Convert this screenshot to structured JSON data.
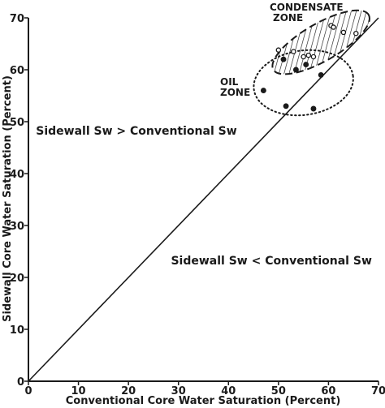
{
  "chart_data": {
    "type": "scatter",
    "xlabel": "Conventional Core Water Saturation (Percent)",
    "ylabel": "Sidewall Core Water Saturation (Percent)",
    "xlim": [
      0,
      70
    ],
    "ylim": [
      0,
      70
    ],
    "xticks": [
      0,
      10,
      20,
      30,
      40,
      50,
      60,
      70
    ],
    "yticks": [
      0,
      10,
      20,
      30,
      40,
      50,
      60,
      70
    ],
    "xtick_labels": [
      "0",
      "10",
      "20",
      "30",
      "40",
      "50",
      "60",
      "70"
    ],
    "ytick_labels": [
      "0",
      "10",
      "20",
      "30",
      "40",
      "50",
      "60",
      "70"
    ],
    "grid": false,
    "reference_line": {
      "type": "1:1",
      "from": [
        0,
        0
      ],
      "to": [
        70,
        70
      ]
    },
    "annotations": [
      {
        "text": "Sidewall Sw > Conventional Sw",
        "x": 1.5,
        "y": 47.5
      },
      {
        "text": "Sidewall Sw < Conventional Sw",
        "x": 28.5,
        "y": 22.5
      }
    ],
    "zones": [
      {
        "name": "condensate",
        "label_lines": [
          "CONDENSATE",
          "ZONE"
        ],
        "style": "hatched-dashed",
        "center": [
          58.5,
          65.3
        ],
        "rx": 11.0,
        "ry": 3.6,
        "angle_deg": 30,
        "points": [
          {
            "x": 60.5,
            "y": 68.5,
            "marker": "open"
          },
          {
            "x": 61.0,
            "y": 68.2,
            "marker": "open"
          },
          {
            "x": 63.0,
            "y": 67.2,
            "marker": "open"
          },
          {
            "x": 65.5,
            "y": 67.0,
            "marker": "open"
          },
          {
            "x": 50.0,
            "y": 63.8,
            "marker": "open"
          },
          {
            "x": 53.0,
            "y": 63.5,
            "marker": "open"
          },
          {
            "x": 55.0,
            "y": 62.5,
            "marker": "open"
          },
          {
            "x": 56.0,
            "y": 62.8,
            "marker": "open"
          },
          {
            "x": 57.0,
            "y": 62.5,
            "marker": "open"
          }
        ]
      },
      {
        "name": "oil",
        "label_lines": [
          "OIL",
          "ZONE"
        ],
        "style": "dotted",
        "center": [
          55.0,
          57.5
        ],
        "rx": 10.0,
        "ry": 6.2,
        "angle_deg": 8,
        "points": [
          {
            "x": 51.0,
            "y": 62.0,
            "marker": "filled"
          },
          {
            "x": 53.5,
            "y": 60.0,
            "marker": "filled"
          },
          {
            "x": 55.5,
            "y": 61.0,
            "marker": "filled"
          },
          {
            "x": 58.5,
            "y": 59.0,
            "marker": "filled"
          },
          {
            "x": 47.0,
            "y": 56.0,
            "marker": "filled"
          },
          {
            "x": 51.5,
            "y": 53.0,
            "marker": "filled"
          },
          {
            "x": 57.0,
            "y": 52.5,
            "marker": "filled"
          }
        ]
      }
    ]
  }
}
